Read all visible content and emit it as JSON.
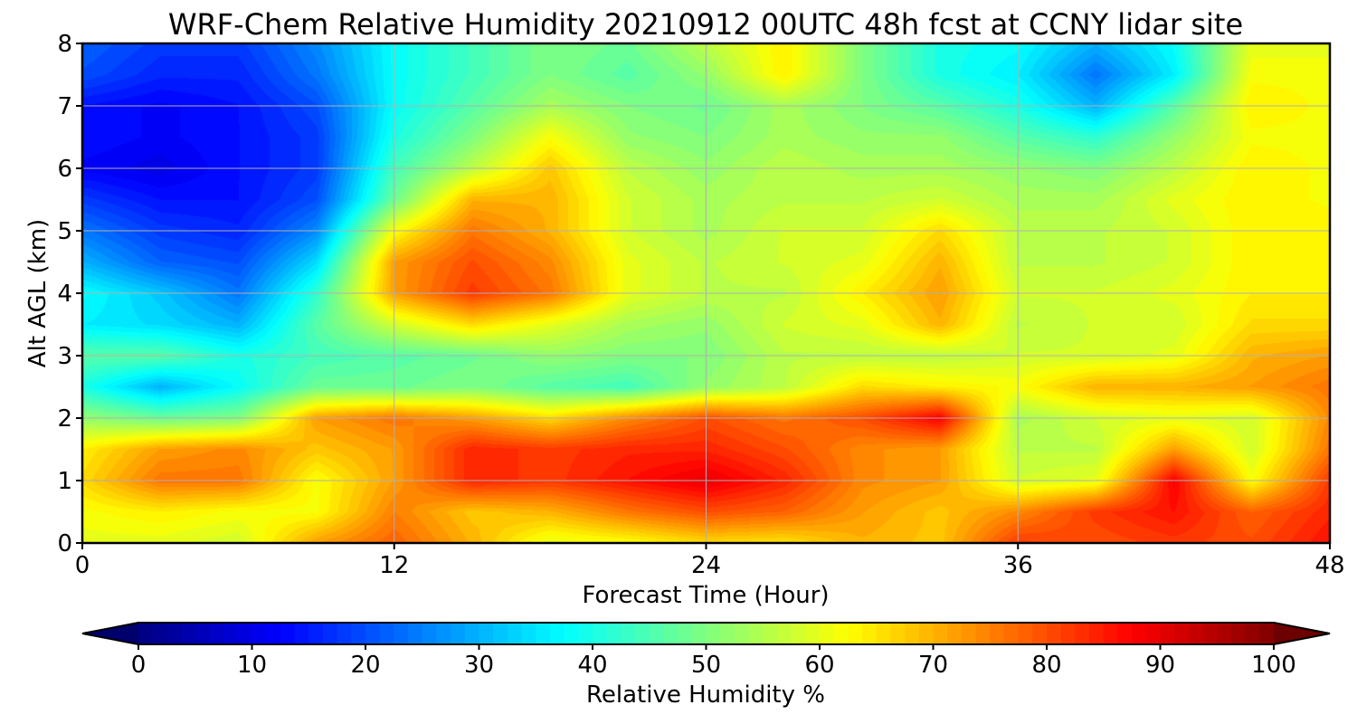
{
  "chart_data": {
    "type": "heatmap",
    "title": "WRF-Chem Relative Humidity 20210912 00UTC 48h fcst at CCNY lidar site",
    "xlabel": "Forecast Time (Hour)",
    "ylabel": "Alt AGL (km)",
    "xlim": [
      0,
      48
    ],
    "ylim": [
      0,
      8
    ],
    "xticks": [
      0,
      12,
      24,
      36,
      48
    ],
    "yticks": [
      0,
      1,
      2,
      3,
      4,
      5,
      6,
      7,
      8
    ],
    "grid": true,
    "colormap": "jet",
    "colorbar": {
      "label": "Relative Humidity %",
      "orientation": "horizontal",
      "placement": "bottom",
      "range": [
        0,
        100
      ],
      "ticks": [
        0,
        10,
        20,
        30,
        40,
        50,
        60,
        70,
        80,
        90,
        100
      ],
      "extend": "both"
    },
    "grid_x": [
      0,
      3,
      6,
      9,
      12,
      15,
      18,
      21,
      24,
      27,
      30,
      33,
      36,
      39,
      42,
      45,
      48
    ],
    "grid_y": [
      0,
      0.5,
      1,
      1.5,
      2,
      2.5,
      3,
      3.5,
      4,
      4.5,
      5,
      5.5,
      6,
      6.5,
      7,
      7.5,
      8
    ],
    "values": [
      [
        60,
        60,
        58,
        72,
        78,
        70,
        60,
        62,
        66,
        65,
        70,
        68,
        82,
        80,
        82,
        80,
        86
      ],
      [
        62,
        64,
        62,
        62,
        75,
        68,
        70,
        76,
        80,
        78,
        72,
        68,
        74,
        82,
        86,
        78,
        84
      ],
      [
        66,
        76,
        76,
        62,
        72,
        84,
        82,
        86,
        90,
        84,
        74,
        72,
        58,
        60,
        88,
        62,
        82
      ],
      [
        64,
        72,
        74,
        68,
        72,
        84,
        82,
        84,
        84,
        80,
        74,
        72,
        56,
        56,
        72,
        58,
        76
      ],
      [
        52,
        48,
        50,
        72,
        76,
        72,
        66,
        74,
        80,
        76,
        80,
        88,
        54,
        58,
        60,
        58,
        74
      ],
      [
        40,
        30,
        38,
        48,
        48,
        50,
        46,
        44,
        52,
        56,
        66,
        64,
        62,
        70,
        70,
        72,
        76
      ],
      [
        46,
        46,
        40,
        44,
        46,
        48,
        52,
        50,
        50,
        56,
        56,
        56,
        58,
        58,
        60,
        70,
        72
      ],
      [
        36,
        34,
        30,
        46,
        58,
        66,
        60,
        54,
        52,
        58,
        60,
        70,
        56,
        58,
        58,
        66,
        66
      ],
      [
        38,
        32,
        24,
        42,
        72,
        82,
        76,
        60,
        56,
        56,
        64,
        72,
        58,
        58,
        60,
        64,
        64
      ],
      [
        30,
        22,
        20,
        34,
        72,
        80,
        74,
        60,
        56,
        58,
        60,
        70,
        56,
        56,
        58,
        64,
        64
      ],
      [
        24,
        18,
        16,
        26,
        62,
        76,
        70,
        58,
        54,
        58,
        58,
        66,
        56,
        56,
        58,
        64,
        64
      ],
      [
        18,
        14,
        14,
        20,
        48,
        70,
        70,
        58,
        54,
        56,
        56,
        58,
        54,
        54,
        60,
        64,
        62
      ],
      [
        12,
        10,
        14,
        18,
        44,
        56,
        68,
        56,
        52,
        56,
        54,
        54,
        52,
        50,
        56,
        64,
        62
      ],
      [
        14,
        12,
        14,
        18,
        40,
        50,
        62,
        52,
        50,
        54,
        52,
        52,
        46,
        42,
        52,
        62,
        62
      ],
      [
        14,
        12,
        14,
        20,
        38,
        46,
        54,
        50,
        48,
        54,
        50,
        46,
        40,
        30,
        46,
        64,
        62
      ],
      [
        20,
        16,
        16,
        24,
        38,
        44,
        50,
        46,
        52,
        64,
        50,
        40,
        36,
        24,
        36,
        62,
        62
      ],
      [
        22,
        18,
        18,
        26,
        38,
        44,
        50,
        48,
        56,
        64,
        50,
        40,
        38,
        30,
        38,
        60,
        60
      ]
    ]
  }
}
